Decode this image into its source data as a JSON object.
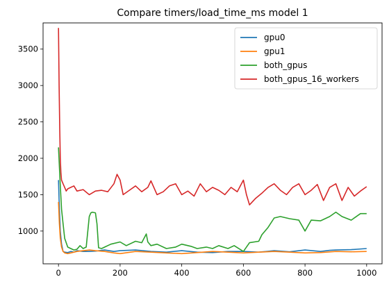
{
  "chart_data": {
    "type": "line",
    "title": "Compare timers/load_time_ms model 1",
    "xlabel": "",
    "ylabel": "",
    "xlim": [
      -50,
      1050
    ],
    "ylim": [
      550,
      3860
    ],
    "xticks": [
      0,
      200,
      400,
      600,
      800,
      1000
    ],
    "yticks": [
      1000,
      1500,
      2000,
      2500,
      3000,
      3500
    ],
    "legend": "top-right",
    "grid": false,
    "series": [
      {
        "name": "gpu0",
        "color": "#1f77b4",
        "x": [
          0,
          3,
          6,
          10,
          15,
          20,
          30,
          40,
          50,
          60,
          80,
          100,
          120,
          150,
          180,
          200,
          250,
          300,
          350,
          400,
          450,
          500,
          550,
          600,
          650,
          700,
          750,
          800,
          850,
          880,
          900,
          950,
          1000
        ],
        "y": [
          1700,
          1300,
          1000,
          820,
          720,
          710,
          705,
          720,
          710,
          730,
          720,
          720,
          725,
          740,
          720,
          730,
          740,
          720,
          710,
          730,
          710,
          705,
          720,
          720,
          710,
          730,
          715,
          740,
          720,
          735,
          740,
          745,
          760
        ]
      },
      {
        "name": "gpu1",
        "color": "#ff7f0e",
        "x": [
          0,
          3,
          6,
          10,
          15,
          20,
          30,
          40,
          50,
          60,
          80,
          100,
          120,
          150,
          180,
          200,
          250,
          300,
          350,
          400,
          450,
          500,
          550,
          600,
          650,
          700,
          750,
          800,
          850,
          900,
          950,
          1000
        ],
        "y": [
          1400,
          1100,
          900,
          780,
          720,
          700,
          690,
          700,
          710,
          720,
          730,
          740,
          730,
          720,
          700,
          690,
          720,
          710,
          700,
          690,
          705,
          720,
          710,
          700,
          710,
          720,
          710,
          700,
          705,
          720,
          715,
          720
        ]
      },
      {
        "name": "both_gpus",
        "color": "#2ca02c",
        "x": [
          0,
          5,
          10,
          15,
          20,
          30,
          40,
          50,
          60,
          70,
          80,
          90,
          100,
          105,
          110,
          120,
          125,
          130,
          140,
          150,
          170,
          200,
          220,
          250,
          270,
          285,
          290,
          300,
          320,
          350,
          380,
          400,
          430,
          450,
          480,
          500,
          520,
          550,
          570,
          600,
          620,
          650,
          660,
          680,
          700,
          720,
          750,
          780,
          800,
          820,
          850,
          880,
          900,
          920,
          950,
          980,
          1000
        ],
        "y": [
          2150,
          1700,
          1300,
          1100,
          900,
          780,
          760,
          740,
          750,
          800,
          760,
          780,
          1200,
          1250,
          1260,
          1250,
          1100,
          770,
          760,
          780,
          820,
          850,
          800,
          860,
          840,
          960,
          850,
          800,
          820,
          760,
          780,
          820,
          790,
          760,
          780,
          760,
          800,
          760,
          800,
          720,
          840,
          860,
          950,
          1050,
          1180,
          1200,
          1170,
          1150,
          1000,
          1150,
          1140,
          1200,
          1260,
          1200,
          1150,
          1240,
          1240
        ]
      },
      {
        "name": "both_gpus_16_workers",
        "color": "#d62728",
        "x": [
          0,
          2,
          4,
          6,
          8,
          10,
          15,
          20,
          25,
          30,
          40,
          50,
          60,
          80,
          100,
          120,
          140,
          160,
          180,
          190,
          200,
          210,
          230,
          250,
          270,
          290,
          300,
          320,
          340,
          360,
          380,
          400,
          420,
          440,
          460,
          480,
          500,
          520,
          540,
          560,
          580,
          600,
          610,
          620,
          640,
          660,
          680,
          700,
          720,
          740,
          760,
          780,
          800,
          820,
          840,
          860,
          880,
          900,
          920,
          940,
          960,
          980,
          1000
        ],
        "y": [
          3790,
          3000,
          2400,
          2000,
          1800,
          1700,
          1650,
          1600,
          1550,
          1580,
          1600,
          1620,
          1550,
          1570,
          1500,
          1550,
          1560,
          1540,
          1650,
          1780,
          1700,
          1500,
          1560,
          1620,
          1540,
          1600,
          1690,
          1500,
          1540,
          1620,
          1650,
          1500,
          1550,
          1480,
          1650,
          1540,
          1600,
          1560,
          1500,
          1600,
          1540,
          1700,
          1500,
          1360,
          1450,
          1520,
          1600,
          1650,
          1560,
          1500,
          1600,
          1650,
          1500,
          1560,
          1640,
          1420,
          1600,
          1650,
          1420,
          1600,
          1480,
          1550,
          1610
        ]
      }
    ]
  }
}
